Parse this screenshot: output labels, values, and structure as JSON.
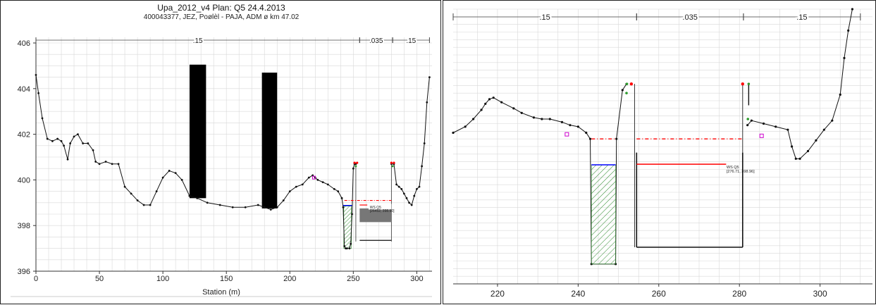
{
  "title": "Upa_2012_v4     Plan: Q5    24.4.2013",
  "subtitle": "400043377, JEZ, Poølèl - PAJA, ADM ø km 47.02",
  "chart_data": [
    {
      "type": "line",
      "panel": "left",
      "xlabel": "Station (m)",
      "ylabel": "",
      "xlim": [
        0,
        312
      ],
      "ylim": [
        396,
        406
      ],
      "xticks": [
        0,
        50,
        100,
        150,
        200,
        250,
        300
      ],
      "yticks": [
        396,
        398,
        400,
        402,
        404,
        406
      ],
      "manning_n": [
        {
          "label": ".15",
          "x0": 0,
          "x1": 255
        },
        {
          "label": ".035",
          "x0": 255,
          "x1": 281
        },
        {
          "label": ".15",
          "x0": 281,
          "x1": 310
        }
      ],
      "ground": {
        "x": [
          0,
          2,
          5,
          9,
          13,
          17,
          20,
          22,
          25,
          27,
          30,
          33,
          37,
          41,
          45,
          47,
          50,
          55,
          60,
          65,
          70,
          75,
          80,
          85,
          90,
          95,
          100,
          105,
          110,
          115,
          121,
          127,
          135,
          145,
          155,
          165,
          175,
          180,
          185,
          190,
          195,
          200,
          205,
          210,
          215,
          218,
          220,
          222,
          226,
          230,
          235,
          238,
          241,
          242,
          243,
          244,
          245,
          247,
          248,
          249,
          250,
          251,
          252
        ],
        "y": [
          404.6,
          403.8,
          402.7,
          401.8,
          401.7,
          401.8,
          401.7,
          401.5,
          400.9,
          401.6,
          401.9,
          402.0,
          401.6,
          401.6,
          401.3,
          400.8,
          400.7,
          400.8,
          400.7,
          400.7,
          399.7,
          399.4,
          399.1,
          398.9,
          398.9,
          399.5,
          400.1,
          400.4,
          400.3,
          400.0,
          399.3,
          399.2,
          399.0,
          398.9,
          398.8,
          398.8,
          398.9,
          398.8,
          398.7,
          398.8,
          399.1,
          399.5,
          399.7,
          399.8,
          400.1,
          400.2,
          400.1,
          400.0,
          399.9,
          399.8,
          399.6,
          399.5,
          399.2,
          398.8,
          397.1,
          397.0,
          397.0,
          397.0,
          397.2,
          398.5,
          400.5,
          400.7,
          400.7
        ]
      },
      "ground_right": {
        "x": [
          280,
          282,
          284,
          286,
          288,
          290,
          292,
          294,
          296,
          298,
          300,
          302,
          304,
          306,
          308,
          310
        ],
        "y": [
          400.7,
          400.7,
          399.8,
          399.7,
          399.6,
          399.4,
          399.2,
          399.0,
          398.9,
          399.3,
          399.6,
          399.7,
          400.6,
          401.6,
          403.4,
          404.5
        ]
      },
      "piers": [
        {
          "x0": 121,
          "x1": 134,
          "top": 405.05,
          "bottom": 399.2
        },
        {
          "x0": 178,
          "x1": 190,
          "top": 404.7,
          "bottom": 398.75
        }
      ],
      "ws_label": "WS Q5",
      "ws_sub": "[26452, 398.90]"
    },
    {
      "type": "line",
      "panel": "right",
      "xlabel": "",
      "ylabel": "",
      "xlim": [
        209,
        313
      ],
      "ylim": [
        396.0,
        405.0
      ],
      "xticks": [
        220,
        240,
        260,
        280,
        300
      ],
      "manning_n": [
        {
          "label": ".15",
          "x0": 209,
          "x1": 254.5
        },
        {
          "label": ".035",
          "x0": 254.5,
          "x1": 281
        },
        {
          "label": ".15",
          "x0": 281,
          "x1": 310
        }
      ],
      "ws_label": "WS Q5",
      "ws_sub": "[276.71, 398.96]"
    }
  ],
  "colors": {
    "ground": "#111111",
    "ws": "#0000ff",
    "crit": "#ff0000",
    "hatch": "#2e8b2e",
    "pier": "#000000",
    "grid": "#d8d8d8"
  }
}
